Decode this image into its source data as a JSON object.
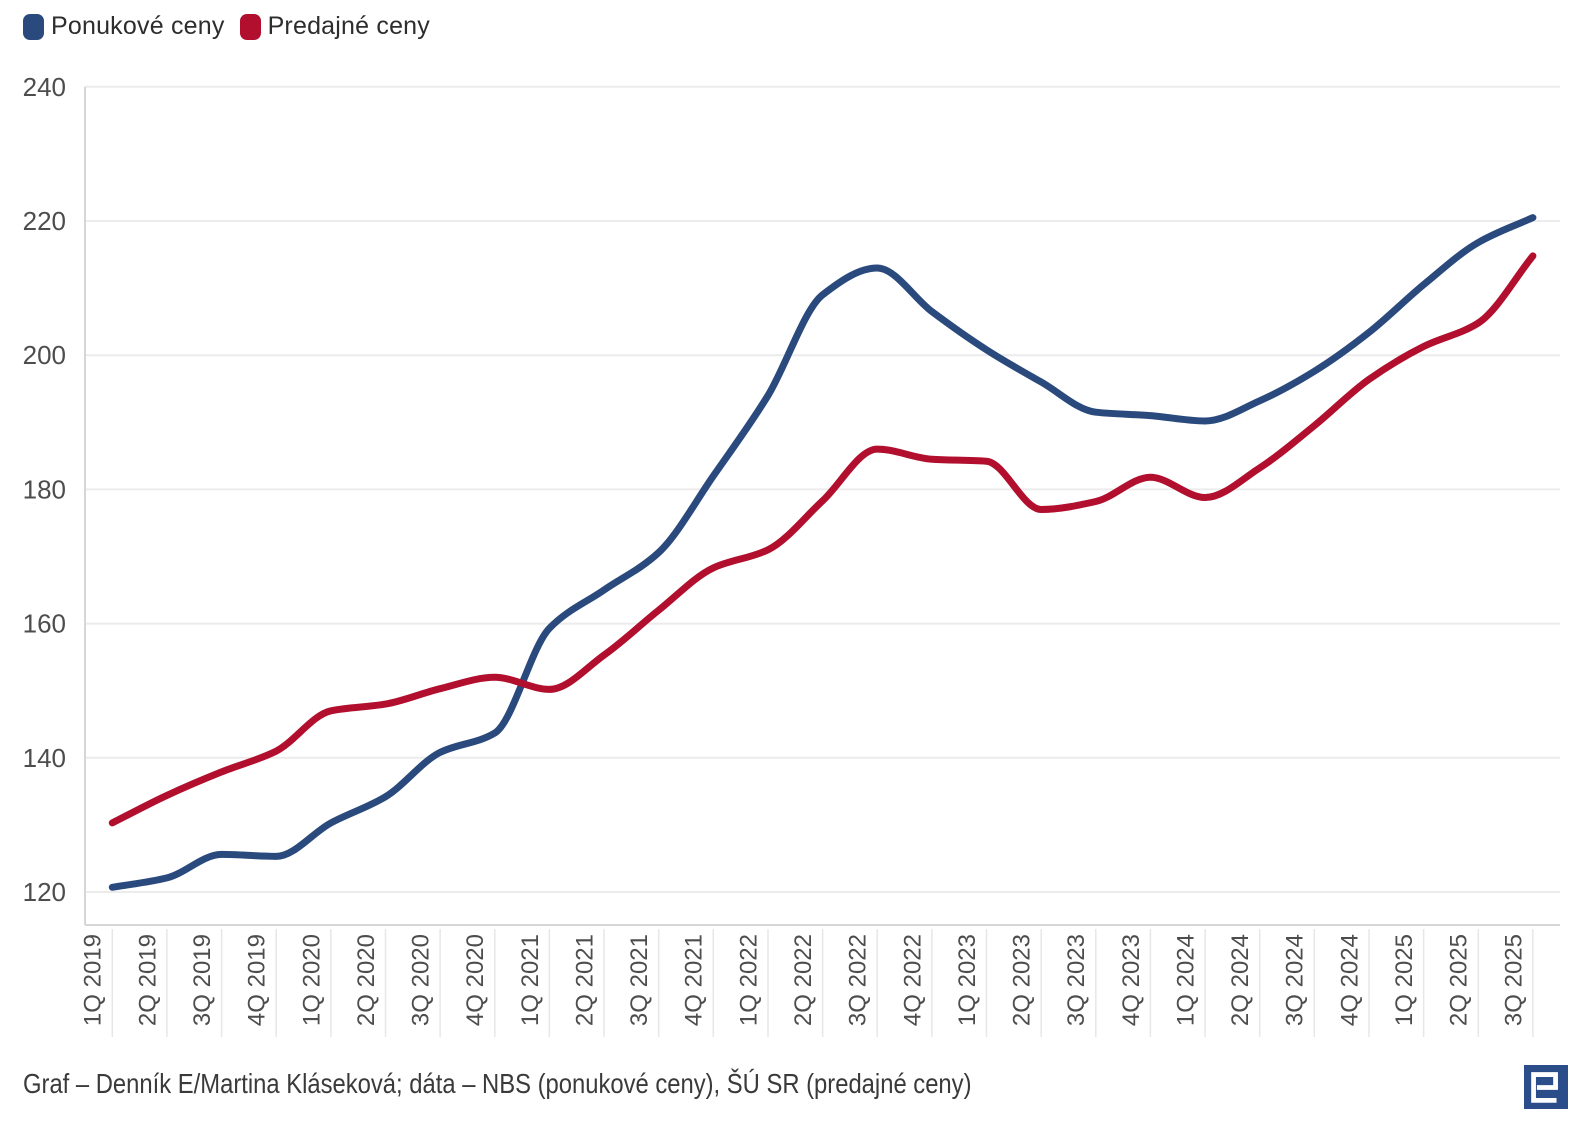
{
  "legend": {
    "items": [
      {
        "label": "Ponukové ceny",
        "color": "#2A4A7D"
      },
      {
        "label": "Predajné ceny",
        "color": "#B10F2D"
      }
    ]
  },
  "chart_data": {
    "type": "line",
    "title": "",
    "xlabel": "",
    "ylabel": "",
    "ylim": [
      120,
      240
    ],
    "y_ticks": [
      240,
      220,
      200,
      180,
      160,
      140,
      120
    ],
    "grid": "horizontal",
    "legend_position": "top-left",
    "smoothing": "monotone",
    "categories": [
      "1Q 2019",
      "2Q 2019",
      "3Q 2019",
      "4Q 2019",
      "1Q 2020",
      "2Q 2020",
      "3Q 2020",
      "4Q 2020",
      "1Q 2021",
      "2Q 2021",
      "3Q 2021",
      "4Q 2021",
      "1Q 2022",
      "2Q 2022",
      "3Q 2022",
      "4Q 2022",
      "1Q 2023",
      "2Q 2023",
      "3Q 2023",
      "4Q 2023",
      "1Q 2024",
      "2Q 2024",
      "3Q 2024",
      "4Q 2024",
      "1Q 2025",
      "2Q 2025",
      "3Q 2025"
    ],
    "series": [
      {
        "name": "Ponukové ceny",
        "color": "#2A4A7D",
        "values": [
          120.7,
          122.1,
          125.6,
          125.3,
          130.3,
          134.2,
          140.8,
          143.7,
          159.3,
          165.0,
          170.6,
          182.0,
          194.0,
          209.0,
          213.0,
          206.5,
          200.8,
          196.0,
          191.5,
          191.0,
          190.2,
          193.2,
          197.6,
          203.4,
          210.5,
          216.8,
          220.5
        ]
      },
      {
        "name": "Predajné ceny",
        "color": "#B10F2D",
        "values": [
          130.3,
          134.4,
          137.9,
          141.0,
          147.0,
          148.0,
          150.3,
          152.0,
          150.2,
          155.3,
          162.0,
          168.3,
          171.0,
          178.3,
          186.0,
          184.5,
          184.2,
          177.0,
          178.2,
          181.8,
          178.8,
          183.2,
          189.5,
          196.4,
          201.3,
          204.8,
          214.8
        ]
      }
    ]
  },
  "footer": {
    "credit": "Graf – Denník E/Martina Kláseková; dáta – NBS (ponukové ceny), ŠÚ SR (predajné ceny)"
  },
  "logo": {
    "name": "Denník E",
    "bg": "#2B4D8A",
    "glyph": "E"
  }
}
